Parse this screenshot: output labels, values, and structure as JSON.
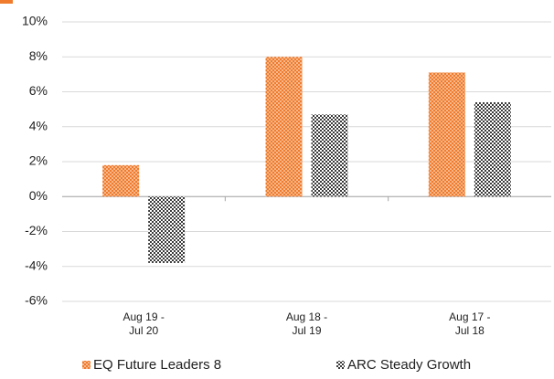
{
  "chart_data": {
    "type": "bar",
    "categories": [
      [
        "Aug 19 -",
        "Jul 20"
      ],
      [
        "Aug 18 -",
        "Jul 19"
      ],
      [
        "Aug 17 -",
        "Jul 18"
      ]
    ],
    "series": [
      {
        "name": "EQ Future Leaders 8",
        "color": "#f07b2c",
        "values": [
          1.8,
          8.0,
          7.1
        ]
      },
      {
        "name": "ARC Steady Growth",
        "color": "#3a3a3a",
        "values": [
          -3.8,
          4.7,
          5.4
        ]
      }
    ],
    "ylim": [
      -6,
      10
    ],
    "yticks": [
      {
        "value": -6,
        "label": "-6%"
      },
      {
        "value": -4,
        "label": "-4%"
      },
      {
        "value": -2,
        "label": "-2%"
      },
      {
        "value": 0,
        "label": "0%"
      },
      {
        "value": 2,
        "label": "2%"
      },
      {
        "value": 4,
        "label": "4%"
      },
      {
        "value": 6,
        "label": "6%"
      },
      {
        "value": 8,
        "label": "8%"
      },
      {
        "value": 10,
        "label": "10%"
      }
    ],
    "grid": true
  }
}
